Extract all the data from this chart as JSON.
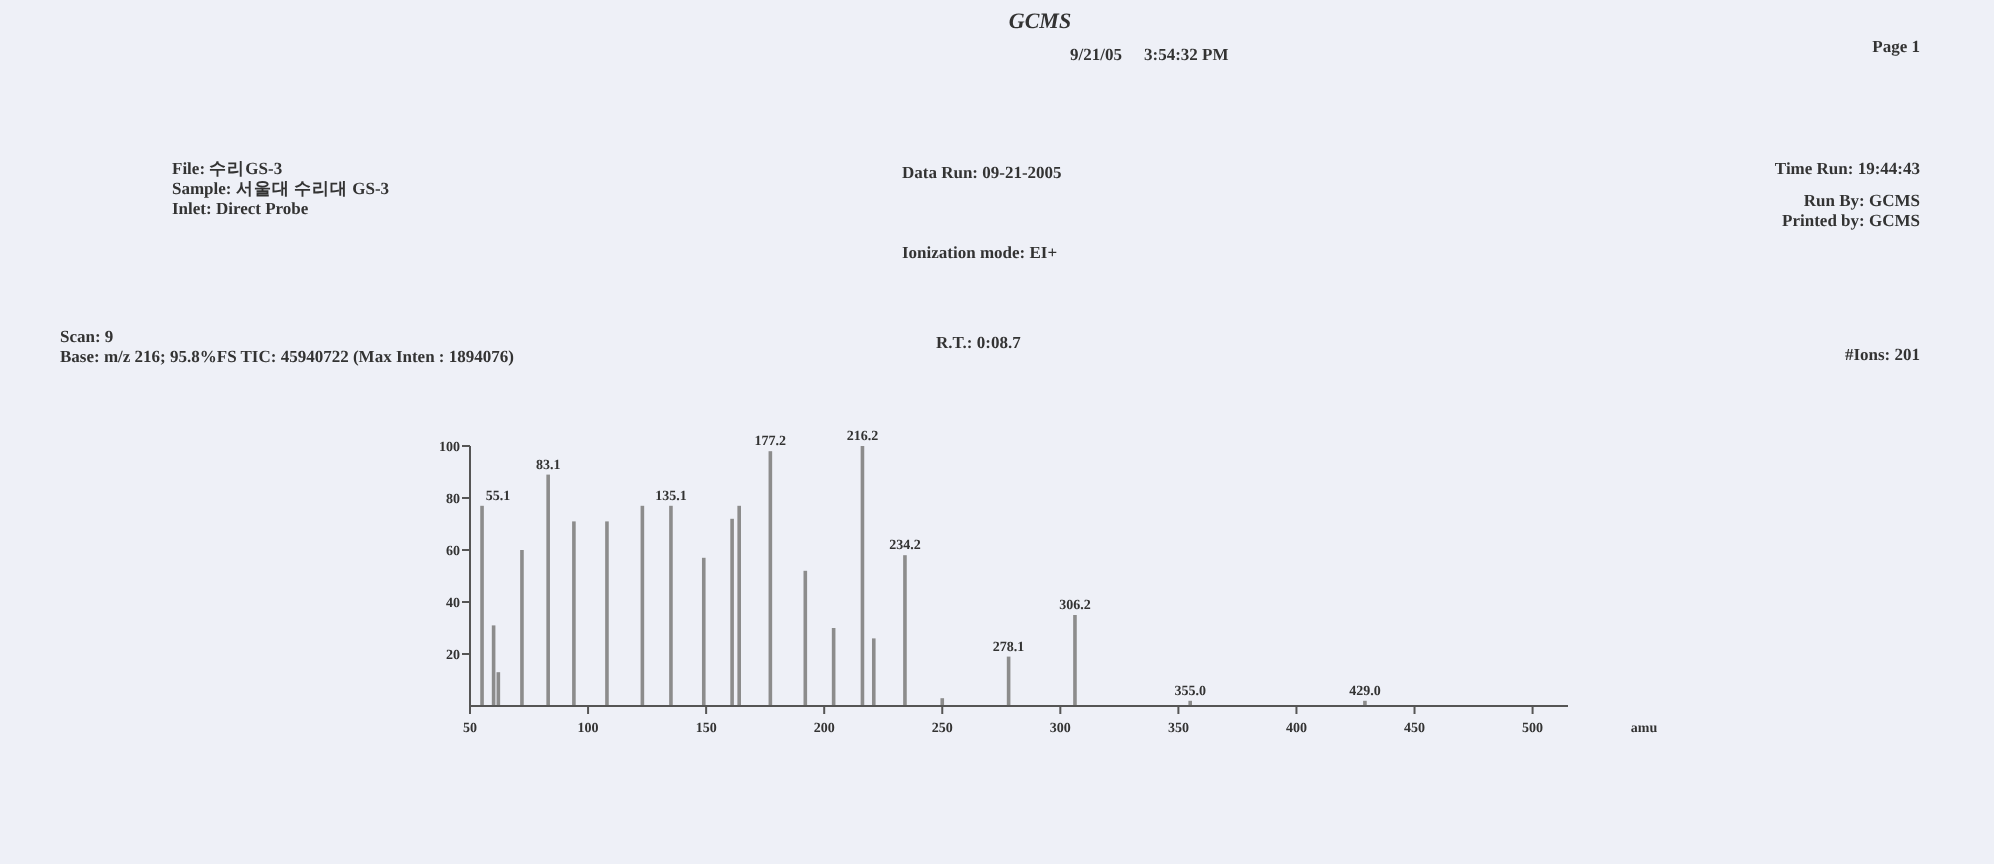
{
  "chart_data": {
    "type": "bar",
    "title": "GCMS",
    "xlabel": "amu",
    "x": [
      55.1,
      60,
      62,
      72,
      83.1,
      94,
      108,
      123,
      135.1,
      149,
      161,
      164,
      177.2,
      192,
      204,
      216.2,
      221,
      234.2,
      250,
      278.1,
      306.2,
      355.0,
      429.0
    ],
    "values": [
      77,
      31,
      13,
      60,
      89,
      71,
      71,
      77,
      77,
      57,
      72,
      77,
      98,
      52,
      30,
      100,
      26,
      58,
      3,
      19,
      35,
      2,
      2
    ],
    "color": "#8c8c8c",
    "xlim": [
      50,
      515
    ],
    "xticks": [
      50,
      100,
      150,
      200,
      250,
      300,
      350,
      400,
      450,
      500
    ],
    "ylim": [
      0,
      100
    ],
    "yticks": [
      20,
      40,
      60,
      80,
      100
    ],
    "annotations": [
      "9/21/05",
      "3:54:32 PM",
      "Page 1",
      "File: 수리GS-3",
      "Sample: 서울대 수리대 GS-3",
      "Inlet: Direct Probe",
      "Data Run: 09-21-2005",
      "Ionization mode: EI+",
      "Time Run: 19:44:43",
      "Run By: GCMS",
      "Printed by: GCMS",
      "Scan: 9",
      "Base: m/z 216; 95.8%FS TIC: 45940722 (Max Inten : 1894076)",
      "R.T.: 0:08.7",
      "#Ions: 201",
      {
        "text": "55.1",
        "x": 55.1,
        "y": 77
      },
      {
        "text": "83.1",
        "x": 83.1,
        "y": 89
      },
      {
        "text": "135.1",
        "x": 135.1,
        "y": 77
      },
      {
        "text": "177.2",
        "x": 177.2,
        "y": 98
      },
      {
        "text": "216.2",
        "x": 216.2,
        "y": 100
      },
      {
        "text": "234.2",
        "x": 234.2,
        "y": 58
      },
      {
        "text": "278.1",
        "x": 278.1,
        "y": 19
      },
      {
        "text": "306.2",
        "x": 306.2,
        "y": 35
      },
      {
        "text": "355.0",
        "x": 355.0,
        "y": 2
      },
      {
        "text": "429.0",
        "x": 429.0,
        "y": 2
      }
    ]
  }
}
